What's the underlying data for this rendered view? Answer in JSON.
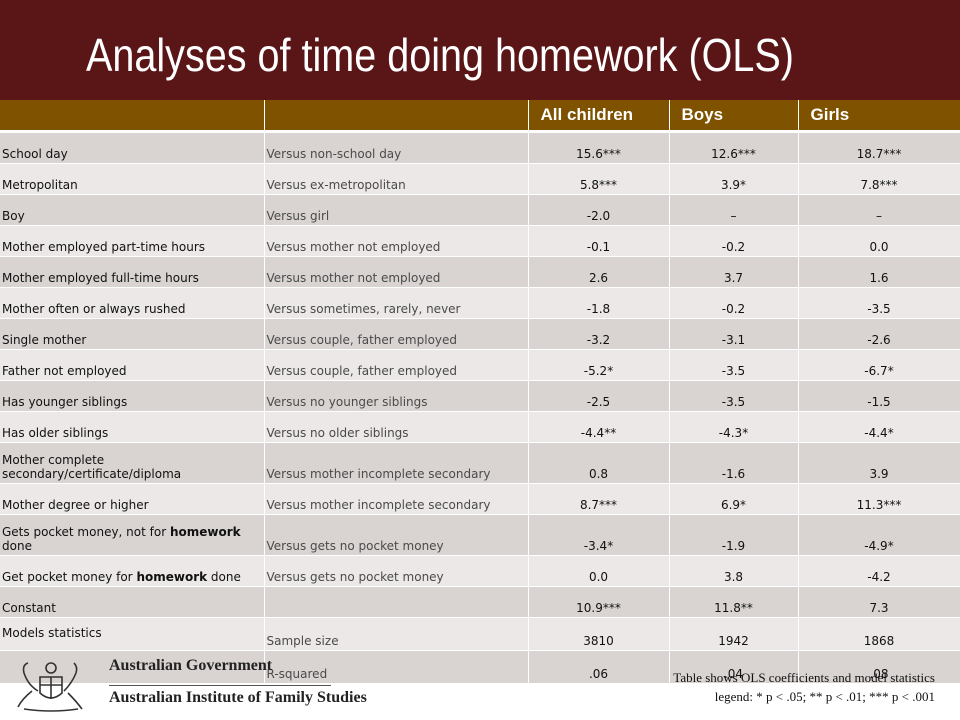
{
  "title": "Analyses of time doing homework (OLS)",
  "columns": [
    "",
    "",
    "All children",
    "Boys",
    "Girls"
  ],
  "rows": [
    {
      "variable": "School day",
      "comparison": "Versus non-school day",
      "all": "15.6***",
      "boys": "12.6***",
      "girls": "18.7***"
    },
    {
      "variable": "Metropolitan",
      "comparison": "Versus ex-metropolitan",
      "all": "5.8***",
      "boys": "3.9*",
      "girls": "7.8***"
    },
    {
      "variable": "Boy",
      "comparison": "Versus girl",
      "all": "-2.0",
      "boys": "–",
      "girls": "–"
    },
    {
      "variable": "Mother employed part-time hours",
      "comparison": "Versus mother not employed",
      "all": "-0.1",
      "boys": "-0.2",
      "girls": "0.0"
    },
    {
      "variable": "Mother employed full-time hours",
      "comparison": "Versus mother not employed",
      "all": "2.6",
      "boys": "3.7",
      "girls": "1.6"
    },
    {
      "variable": "Mother often or always rushed",
      "comparison": "Versus sometimes, rarely, never",
      "all": "-1.8",
      "boys": "-0.2",
      "girls": "-3.5"
    },
    {
      "variable": "Single mother",
      "comparison": "Versus couple, father employed",
      "all": "-3.2",
      "boys": "-3.1",
      "girls": "-2.6"
    },
    {
      "variable": "Father not employed",
      "comparison": "Versus couple, father employed",
      "all": "-5.2*",
      "boys": "-3.5",
      "girls": "-6.7*"
    },
    {
      "variable": "Has younger siblings",
      "comparison": "Versus no younger siblings",
      "all": "-2.5",
      "boys": "-3.5",
      "girls": "-1.5"
    },
    {
      "variable": "Has older siblings",
      "comparison": "Versus no older siblings",
      "all": "-4.4**",
      "boys": "-4.3*",
      "girls": "-4.4*"
    },
    {
      "variable": "Mother complete secondary/certificate/diploma",
      "comparison": "Versus mother incomplete secondary",
      "all": "0.8",
      "boys": "-1.6",
      "girls": "3.9"
    },
    {
      "variable": "Mother degree or higher",
      "comparison": "Versus mother incomplete secondary",
      "all": "8.7***",
      "boys": "6.9*",
      "girls": "11.3***"
    },
    {
      "variable_pre": "Gets pocket money, not for ",
      "variable_bold": "homework",
      "variable_post": " done",
      "comparison": "Versus gets no pocket money",
      "all": "-3.4*",
      "boys": "-1.9",
      "girls": "-4.9*"
    },
    {
      "variable_pre": "Get pocket money for ",
      "variable_bold": "homework",
      "variable_post": " done",
      "comparison": "Versus gets no pocket money",
      "all": "0.0",
      "boys": "3.8",
      "girls": "-4.2"
    },
    {
      "variable": "Constant",
      "comparison": "",
      "all": "10.9***",
      "boys": "11.8**",
      "girls": "7.3"
    },
    {
      "variable": "Models statistics",
      "comparison": "Sample size",
      "all": "3810",
      "boys": "1942",
      "girls": "1868"
    },
    {
      "variable": "",
      "comparison": "R-squared",
      "all": ".06",
      "boys": ".04",
      "girls": ".08"
    }
  ],
  "logo": {
    "government": "Australian Government",
    "institute": "Australian Institute of Family Studies"
  },
  "note": {
    "line1": "Table shows OLS coefficients and model statistics",
    "line2": "legend: * p < .05; ** p < .01; *** p < .001"
  }
}
